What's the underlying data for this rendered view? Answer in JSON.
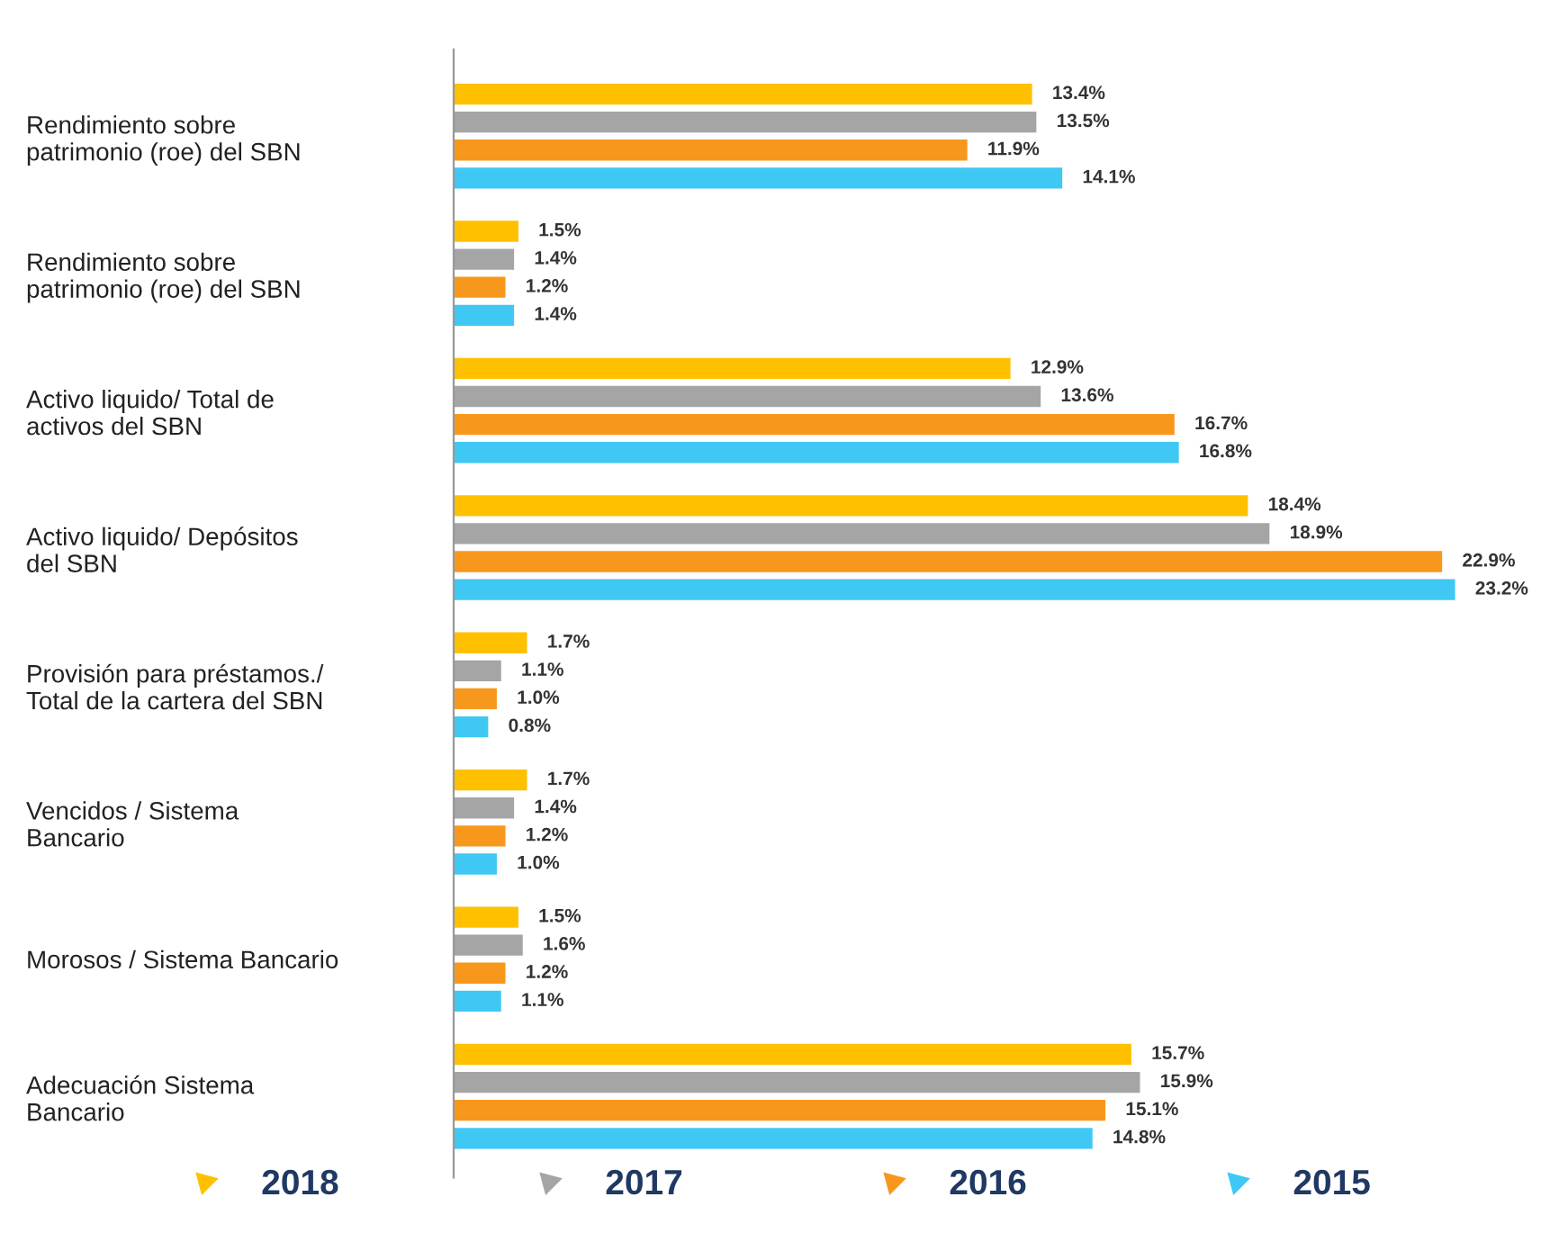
{
  "chart_data": {
    "type": "bar",
    "orientation": "horizontal",
    "legend": "bottom",
    "grid": false,
    "categories": [
      "Rendimiento sobre\npatrimonio (roe) del SBN",
      "Rendimiento sobre\npatrimonio (roe) del SBN",
      "Activo liquido/ Total de\nactivos del SBN",
      "Activo liquido/ Depósitos\ndel SBN",
      "Provisión para préstamos./\nTotal de la cartera del SBN",
      "Vencidos / Sistema\nBancario",
      "Morosos / Sistema Bancario",
      "Adecuación Sistema\nBancario"
    ],
    "series": [
      {
        "name": "2018",
        "color": "#ffc000",
        "values": [
          13.4,
          1.5,
          12.9,
          18.4,
          1.7,
          1.7,
          1.5,
          15.7
        ],
        "value_labels": [
          "13.4%",
          "1.5%",
          "12.9%",
          "18.4%",
          "1.7%",
          "1.7%",
          "1.5%",
          "15.7%"
        ]
      },
      {
        "name": "2017",
        "color": "#a5a5a5",
        "values": [
          13.5,
          1.4,
          13.6,
          18.9,
          1.1,
          1.4,
          1.6,
          15.9
        ],
        "value_labels": [
          "13.5%",
          "1.4%",
          "13.6%",
          "18.9%",
          "1.1%",
          "1.4%",
          "1.6%",
          "15.9%"
        ]
      },
      {
        "name": "2016",
        "color": "#f7981d",
        "values": [
          11.9,
          1.2,
          16.7,
          22.9,
          1.0,
          1.2,
          1.2,
          15.1
        ],
        "value_labels": [
          "11.9%",
          "1.2%",
          "16.7%",
          "22.9%",
          "1.0%",
          "1.2%",
          "1.2%",
          "15.1%"
        ]
      },
      {
        "name": "2015",
        "color": "#3fc8f4",
        "values": [
          14.1,
          1.4,
          16.8,
          23.2,
          0.8,
          1.0,
          1.1,
          14.8
        ],
        "value_labels": [
          "14.1%",
          "1.4%",
          "16.8%",
          "23.2%",
          "0.8%",
          "1.0%",
          "1.1%",
          "14.8%"
        ]
      }
    ]
  }
}
